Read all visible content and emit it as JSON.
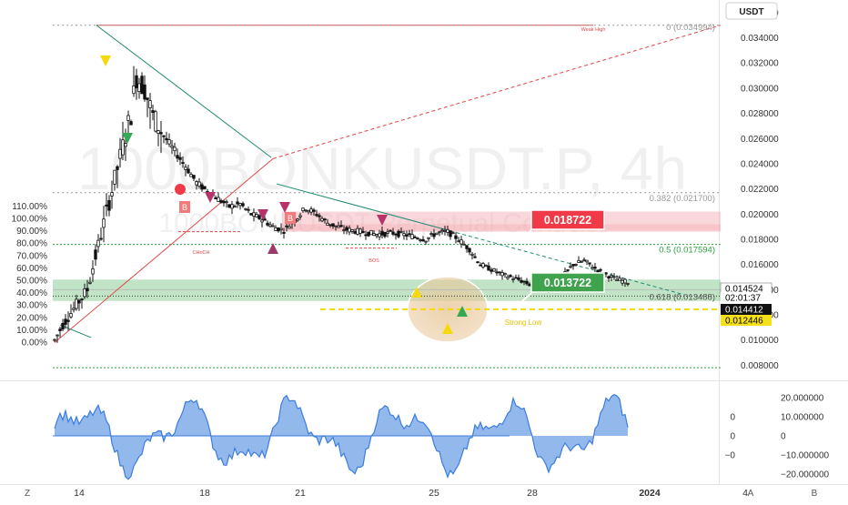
{
  "chart_data": {
    "type": "candlestick",
    "symbol_watermark": "1000BONKUSDT.P, 4h",
    "subtitle_watermark": "1000BONKUSDT Perpetual Contract",
    "currency": "USDT",
    "price_axis": {
      "ylim": [
        0.0068,
        0.037
      ],
      "ticks": [
        "0.036000",
        "0.034000",
        "0.032000",
        "0.030000",
        "0.028000",
        "0.026000",
        "0.024000",
        "0.022000",
        "0.020000",
        "0.018000",
        "0.016000",
        "0.014000",
        "0.012000",
        "0.010000",
        "0.008000"
      ],
      "tick_values": [
        0.036,
        0.034,
        0.032,
        0.03,
        0.028,
        0.026,
        0.024,
        0.022,
        0.02,
        0.018,
        0.016,
        0.014,
        0.012,
        0.01,
        0.008
      ]
    },
    "percent_axis": {
      "ticks": [
        "110.00%",
        "100.00%",
        "90.00%",
        "80.00%",
        "70.00%",
        "60.00%",
        "50.00%",
        "40.00%",
        "30.00%",
        "20.00%",
        "10.00%",
        "0.00%"
      ],
      "tick_values": [
        110,
        100,
        90,
        80,
        70,
        60,
        50,
        40,
        30,
        20,
        10,
        0
      ],
      "base_price": 0.00983
    },
    "time_axis": {
      "ticks": [
        "14",
        "18",
        "21",
        "25",
        "28",
        "2024",
        "4"
      ],
      "tick_index": [
        9,
        55,
        90,
        139,
        175,
        218,
        253
      ],
      "bold": [
        "2024"
      ]
    },
    "candles": [],
    "price_tags": [
      {
        "label": "0.014524",
        "value": 0.014524,
        "bg": "#ffffff",
        "fg": "#000000",
        "border": "#666666"
      },
      {
        "label": "02:01:37",
        "value": 0.0136,
        "bg": "#ffffff",
        "fg": "#000000",
        "border": "none"
      },
      {
        "label": "0.014412",
        "value": 0.014412,
        "bg": "#111111",
        "fg": "#ffffff",
        "border": "none"
      },
      {
        "label": "0.012446",
        "value": 0.012446,
        "bg": "#f5e11a",
        "fg": "#000000",
        "border": "none"
      }
    ],
    "fib_levels": [
      {
        "label": "0 (0.034994)",
        "value": 0.034994
      },
      {
        "label": "0.382 (0.021700)",
        "value": 0.0217
      },
      {
        "label": "0.5 (0.017594)",
        "value": 0.017594
      },
      {
        "label": "0.618 (0.013488)",
        "value": 0.013488
      }
    ],
    "callouts": [
      {
        "label": "0.018722",
        "color": "#f03a47"
      },
      {
        "label": "0.013722",
        "color": "#3fa34d"
      }
    ],
    "annotations": {
      "weak_high": "Weak High",
      "strong_low": "Strong Low",
      "choch": "CHoCH",
      "bos": "BOS",
      "bos_letter": "B"
    },
    "oscillator": {
      "ticks": [
        "20.000000",
        "10.000000",
        "0",
        "−10.000000",
        "−20.000000"
      ],
      "tick_values": [
        20,
        10,
        0,
        -10,
        -20
      ],
      "left_ticks": [
        "0",
        "0",
        "−0"
      ],
      "left_values": [
        10,
        0,
        -10
      ],
      "ylim": [
        -22,
        22
      ],
      "values": [],
      "color": "#3b7ddd"
    },
    "corner_labels": {
      "left": "Z",
      "right_a": "A",
      "right_b": "B"
    },
    "colors": {
      "up": "#ffffff",
      "down": "#111111",
      "red_zone": "#f4a6ad",
      "green_zone": "#86c98d",
      "teal_line": "#1f8a72",
      "red_line": "#e04a4a"
    }
  }
}
